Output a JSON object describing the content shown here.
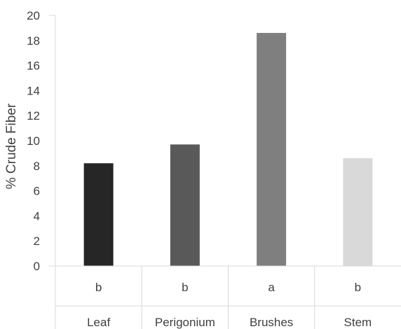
{
  "chart_data": {
    "type": "bar",
    "categories": [
      "Leaf",
      "Perigonium",
      "Brushes",
      "Stem"
    ],
    "group_letters": [
      "b",
      "b",
      "a",
      "b"
    ],
    "values": [
      8.2,
      9.7,
      18.6,
      8.6
    ],
    "bar_colors": [
      "#262626",
      "#595959",
      "#7f7f7f",
      "#d9d9d9"
    ],
    "title": "",
    "xlabel": "",
    "ylabel": "% Crude Fiber",
    "ylim": [
      0,
      20
    ],
    "yticks": [
      0,
      2,
      4,
      6,
      8,
      10,
      12,
      14,
      16,
      18,
      20
    ],
    "grid": false,
    "legend": "none"
  }
}
